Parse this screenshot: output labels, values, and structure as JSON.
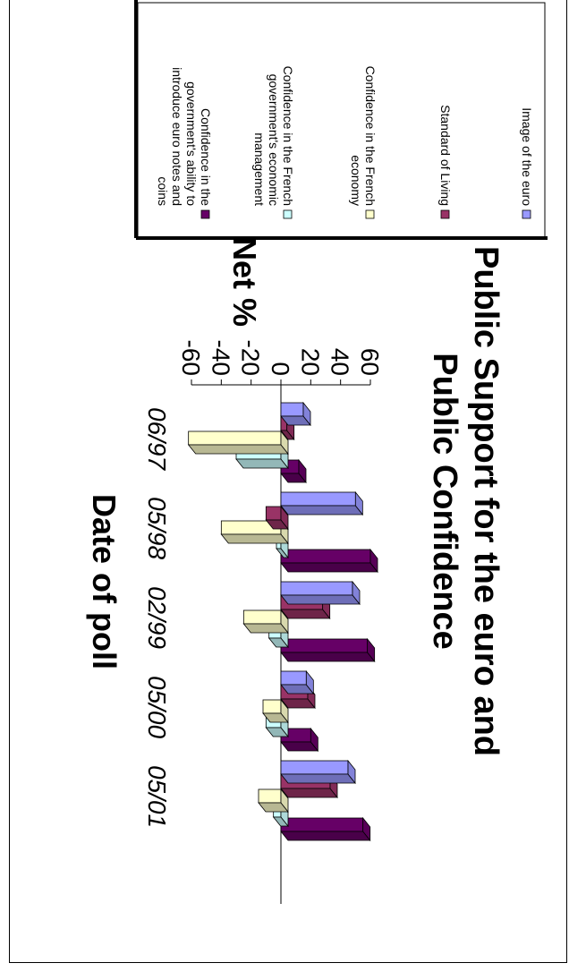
{
  "chart_data": {
    "type": "bar",
    "title": "Public Support for the euro and Public Confidence",
    "title_lines": [
      "Public Support for the euro and",
      "Public Confidence"
    ],
    "xlabel": "Date of poll",
    "ylabel": "Net %",
    "ylim": [
      -60,
      60
    ],
    "yticks": [
      60,
      40,
      20,
      0,
      -20,
      -40,
      -60
    ],
    "categories": [
      "06/97",
      "05/98",
      "02/99",
      "05/00",
      "05/01"
    ],
    "series": [
      {
        "name": "Image of the euro",
        "color": "#9999ff",
        "values": [
          15,
          50,
          48,
          17,
          45
        ]
      },
      {
        "name": "Standard of Living",
        "color": "#993366",
        "values": [
          4,
          -10,
          28,
          18,
          33
        ]
      },
      {
        "name": "Confidence in the French economy",
        "color": "#ffffcc",
        "values": [
          -62,
          -40,
          -25,
          -12,
          -15
        ]
      },
      {
        "name": "Confidence in the French government's economic management",
        "color": "#ccffff",
        "values": [
          -30,
          -3,
          -8,
          -10,
          -5
        ]
      },
      {
        "name": "Confidence in the government's ability to introduce euro notes and coins",
        "color": "#660066",
        "values": [
          12,
          60,
          58,
          20,
          55
        ]
      }
    ],
    "legend_position": "right",
    "grid": false
  }
}
